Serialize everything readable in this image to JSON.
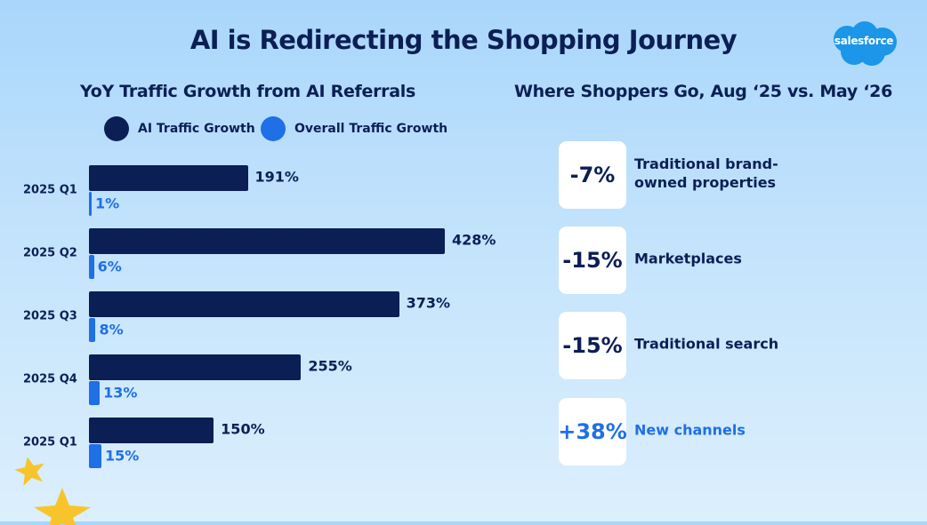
{
  "header": {
    "title": "AI is Redirecting the Shopping Journey",
    "brand": "salesforce"
  },
  "left_panel": {
    "title": "YoY Traffic Growth from AI Referrals"
  },
  "right_panel": {
    "title": "Where Shoppers Go, Aug ‘25 vs. May ‘26"
  },
  "legend": [
    {
      "label": "AI Traffic Growth",
      "color": "#0b1f55"
    },
    {
      "label": "Overall Traffic Growth",
      "color": "#1f6fe6"
    }
  ],
  "chart_data": {
    "type": "bar",
    "orientation": "horizontal",
    "title": "YoY Traffic Growth from AI Referrals",
    "categories": [
      "2025 Q1",
      "2025 Q2",
      "2025 Q3",
      "2025 Q4",
      "2025 Q1"
    ],
    "series": [
      {
        "name": "AI Traffic Growth",
        "values": [
          191,
          428,
          373,
          255,
          150
        ],
        "labels": [
          "191%",
          "428%",
          "373%",
          "255%",
          "150%"
        ],
        "color": "#0b1f55"
      },
      {
        "name": "Overall Traffic Growth",
        "values": [
          1,
          6,
          8,
          13,
          15
        ],
        "labels": [
          "1%",
          "6%",
          "8%",
          "13%",
          "15%"
        ],
        "color": "#1f6fe6"
      }
    ],
    "xlim": [
      0,
      428
    ],
    "grid": false,
    "legend_position": "top"
  },
  "shifts": [
    {
      "value": "-7%",
      "label": "Traditional brand-owned properties",
      "highlight": false
    },
    {
      "value": "-15%",
      "label": "Marketplaces",
      "highlight": false
    },
    {
      "value": "-15%",
      "label": "Traditional search",
      "highlight": false
    },
    {
      "value": "+38%",
      "label": "New channels",
      "highlight": true
    }
  ],
  "colors": {
    "dark": "#0b1f55",
    "accent": "#1f6fe6",
    "star": "#f7c52b"
  },
  "icons": {
    "star": "star-icon",
    "logo": "salesforce-cloud-logo"
  }
}
